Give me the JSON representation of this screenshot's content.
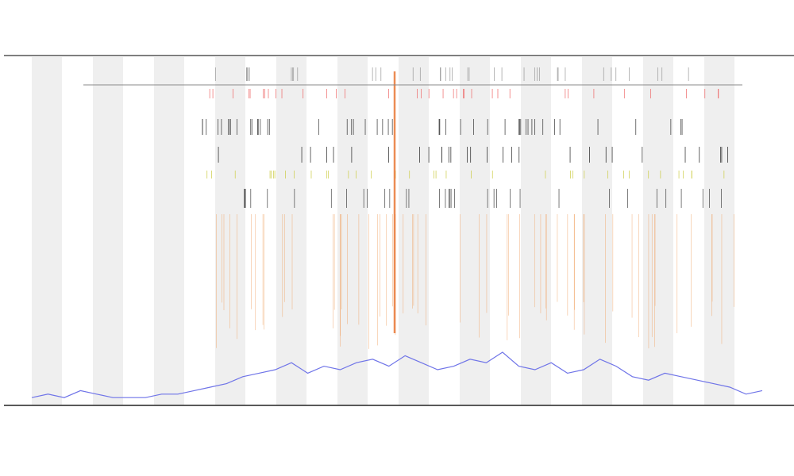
{
  "chart_data": {
    "type": "line",
    "color": "#6f74e8",
    "values": [
      2,
      3,
      2,
      4,
      3,
      2,
      2,
      2,
      3,
      3,
      4,
      5,
      6,
      8,
      9,
      10,
      12,
      9,
      11,
      10,
      12,
      13,
      11,
      14,
      12,
      10,
      11,
      13,
      12,
      15,
      11,
      10,
      12,
      9,
      10,
      13,
      11,
      8,
      7,
      9,
      8,
      7,
      6,
      5,
      3,
      4
    ],
    "ylim": [
      0,
      100
    ]
  }
}
